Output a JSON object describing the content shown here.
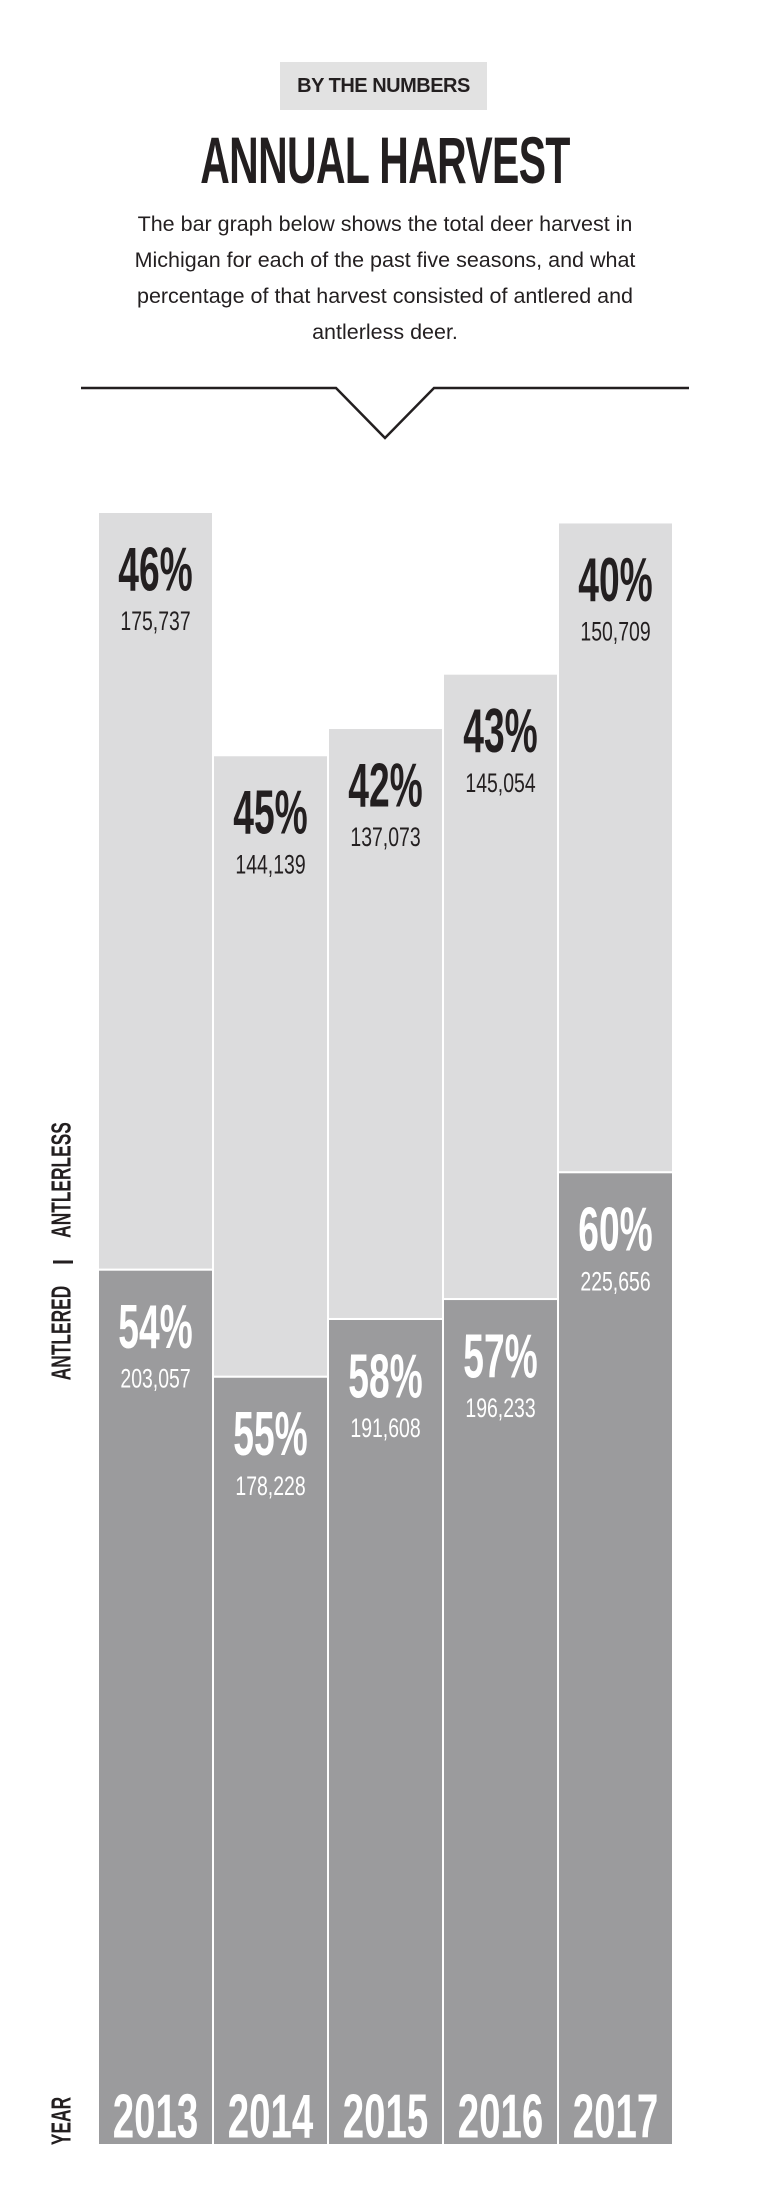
{
  "chart_data": {
    "type": "stacked-bar",
    "kicker": "BY THE NUMBERS",
    "title": "ANNUAL HARVEST",
    "subtitle": "The bar graph below shows the total deer harvest in Michigan for each of the past five seasons, and what percentage of that harvest consisted of antlered and antlerless deer.",
    "x_label": "YEAR",
    "categories": [
      "2013",
      "2014",
      "2015",
      "2016",
      "2017"
    ],
    "series": [
      {
        "name": "ANTLERED",
        "color": "#9b9b9d",
        "text_color": "#ffffff",
        "values": [
          203057,
          178228,
          191608,
          196233,
          225656
        ],
        "value_labels": [
          "203,057",
          "178,228",
          "191,608",
          "196,233",
          "225,656"
        ],
        "percentages": [
          {
            "value": 54,
            "label": "54%"
          },
          {
            "value": 55,
            "label": "55%"
          },
          {
            "value": 58,
            "label": "58%"
          },
          {
            "value": 57,
            "label": "57%"
          },
          {
            "value": 60,
            "label": "60%"
          }
        ]
      },
      {
        "name": "ANTLERLESS",
        "color": "#dcdcdd",
        "text_color": "#231f20",
        "values": [
          175737,
          144139,
          137073,
          145054,
          150709
        ],
        "value_labels": [
          "175,737",
          "144,139",
          "137,073",
          "145,054",
          "150,709"
        ],
        "percentages": [
          {
            "value": 46,
            "label": "46%"
          },
          {
            "value": 45,
            "label": "45%"
          },
          {
            "value": 42,
            "label": "42%"
          },
          {
            "value": 43,
            "label": "43%"
          },
          {
            "value": 40,
            "label": "40%"
          }
        ]
      }
    ]
  }
}
